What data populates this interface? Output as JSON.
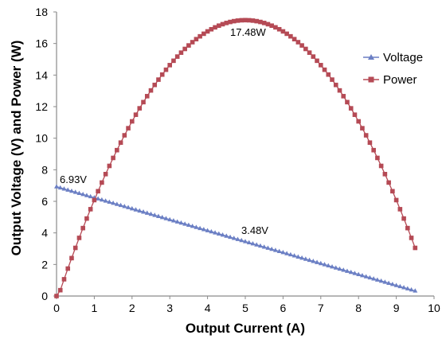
{
  "chart_data": {
    "type": "line",
    "title": "",
    "xlabel": "Output Current (A)",
    "ylabel": "Output Voltage (V) and Power (W)",
    "xlim": [
      0,
      10
    ],
    "ylim": [
      0,
      18
    ],
    "xticks": [
      0,
      1,
      2,
      3,
      4,
      5,
      6,
      7,
      8,
      9,
      10
    ],
    "yticks": [
      0,
      2,
      4,
      6,
      8,
      10,
      12,
      14,
      16,
      18
    ],
    "grid": false,
    "legend_position": "right",
    "series": [
      {
        "name": "Voltage",
        "color": "#6b7fc4",
        "marker": "triangle",
        "x_range": [
          0,
          9.5
        ],
        "point_count": 96,
        "start_value": 6.93,
        "end_value": 0.33,
        "shape": "linear"
      },
      {
        "name": "Power",
        "color": "#b54a55",
        "marker": "square",
        "x_range": [
          0,
          9.5
        ],
        "point_count": 96,
        "peak_x": 5.0,
        "peak_value": 17.48,
        "end_x": 9.5,
        "end_value": 3.05,
        "shape": "parabolic"
      }
    ],
    "annotations": [
      {
        "text": "17.48W",
        "x": 5.0,
        "y": 17.48
      },
      {
        "text": "6.93V",
        "x": 0,
        "y": 6.93
      },
      {
        "text": "3.48V",
        "x": 5.0,
        "y": 3.48
      }
    ]
  }
}
